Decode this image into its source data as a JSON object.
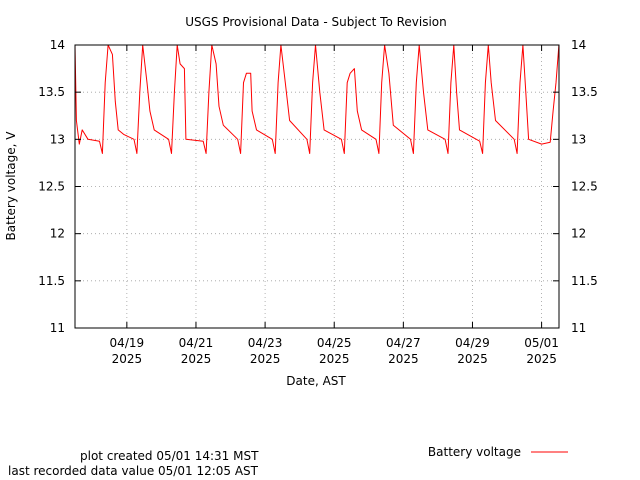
{
  "chart_data": {
    "type": "line",
    "title": "USGS Provisional Data - Subject To Revision",
    "xlabel": "Date, AST",
    "ylabel": "Battery voltage, V",
    "ylim": [
      11,
      14
    ],
    "xlim": [
      "2025-04-17T12:00",
      "2025-05-01T12:05"
    ],
    "y_ticks": [
      "11",
      "11.5",
      "12",
      "12.5",
      "13",
      "13.5",
      "14"
    ],
    "x_ticks": [
      {
        "date": "2025-04-19",
        "label": "04/19",
        "year": "2025"
      },
      {
        "date": "2025-04-21",
        "label": "04/21",
        "year": "2025"
      },
      {
        "date": "2025-04-23",
        "label": "04/23",
        "year": "2025"
      },
      {
        "date": "2025-04-25",
        "label": "04/25",
        "year": "2025"
      },
      {
        "date": "2025-04-27",
        "label": "04/27",
        "year": "2025"
      },
      {
        "date": "2025-04-29",
        "label": "04/29",
        "year": "2025"
      },
      {
        "date": "2025-05-01",
        "label": "05/01",
        "year": "2025"
      }
    ],
    "grid": true,
    "legend_position": "bottom-right",
    "series": [
      {
        "name": "Battery voltage",
        "color": "#ff0000",
        "points": [
          [
            "2025-04-17T12:00",
            14.0
          ],
          [
            "2025-04-17T13:00",
            13.2
          ],
          [
            "2025-04-17T15:00",
            12.95
          ],
          [
            "2025-04-17T17:00",
            13.1
          ],
          [
            "2025-04-17T21:00",
            13.0
          ],
          [
            "2025-04-18T05:00",
            12.98
          ],
          [
            "2025-04-18T07:00",
            12.85
          ],
          [
            "2025-04-18T09:00",
            13.6
          ],
          [
            "2025-04-18T11:00",
            14.0
          ],
          [
            "2025-04-18T14:00",
            13.9
          ],
          [
            "2025-04-18T16:00",
            13.4
          ],
          [
            "2025-04-18T18:00",
            13.1
          ],
          [
            "2025-04-18T22:00",
            13.05
          ],
          [
            "2025-04-19T05:00",
            13.0
          ],
          [
            "2025-04-19T07:00",
            12.85
          ],
          [
            "2025-04-19T09:00",
            13.5
          ],
          [
            "2025-04-19T11:00",
            14.0
          ],
          [
            "2025-04-19T14:00",
            13.6
          ],
          [
            "2025-04-19T16:00",
            13.3
          ],
          [
            "2025-04-19T19:00",
            13.1
          ],
          [
            "2025-04-20T05:00",
            13.0
          ],
          [
            "2025-04-20T07:00",
            12.85
          ],
          [
            "2025-04-20T09:00",
            13.5
          ],
          [
            "2025-04-20T11:00",
            14.0
          ],
          [
            "2025-04-20T13:00",
            13.8
          ],
          [
            "2025-04-20T16:00",
            13.75
          ],
          [
            "2025-04-20T17:00",
            13.0
          ],
          [
            "2025-04-21T05:00",
            12.98
          ],
          [
            "2025-04-21T07:00",
            12.85
          ],
          [
            "2025-04-21T09:00",
            13.5
          ],
          [
            "2025-04-21T11:00",
            14.0
          ],
          [
            "2025-04-21T14:00",
            13.8
          ],
          [
            "2025-04-21T16:00",
            13.35
          ],
          [
            "2025-04-21T19:00",
            13.15
          ],
          [
            "2025-04-22T05:00",
            13.0
          ],
          [
            "2025-04-22T07:00",
            12.85
          ],
          [
            "2025-04-22T09:00",
            13.6
          ],
          [
            "2025-04-22T11:00",
            13.7
          ],
          [
            "2025-04-22T14:00",
            13.7
          ],
          [
            "2025-04-22T15:00",
            13.3
          ],
          [
            "2025-04-22T18:00",
            13.1
          ],
          [
            "2025-04-23T05:00",
            13.0
          ],
          [
            "2025-04-23T07:00",
            12.85
          ],
          [
            "2025-04-23T09:00",
            13.6
          ],
          [
            "2025-04-23T11:00",
            14.0
          ],
          [
            "2025-04-23T14:00",
            13.6
          ],
          [
            "2025-04-23T17:00",
            13.2
          ],
          [
            "2025-04-24T05:00",
            13.0
          ],
          [
            "2025-04-24T07:00",
            12.85
          ],
          [
            "2025-04-24T09:00",
            13.6
          ],
          [
            "2025-04-24T11:00",
            14.0
          ],
          [
            "2025-04-24T14:00",
            13.5
          ],
          [
            "2025-04-24T17:00",
            13.1
          ],
          [
            "2025-04-25T05:00",
            13.0
          ],
          [
            "2025-04-25T07:00",
            12.85
          ],
          [
            "2025-04-25T09:00",
            13.6
          ],
          [
            "2025-04-25T11:00",
            13.7
          ],
          [
            "2025-04-25T14:00",
            13.75
          ],
          [
            "2025-04-25T16:00",
            13.3
          ],
          [
            "2025-04-25T19:00",
            13.1
          ],
          [
            "2025-04-26T05:00",
            13.0
          ],
          [
            "2025-04-26T07:00",
            12.85
          ],
          [
            "2025-04-26T09:00",
            13.6
          ],
          [
            "2025-04-26T11:00",
            14.0
          ],
          [
            "2025-04-26T14:00",
            13.7
          ],
          [
            "2025-04-26T17:00",
            13.15
          ],
          [
            "2025-04-27T05:00",
            13.0
          ],
          [
            "2025-04-27T07:00",
            12.85
          ],
          [
            "2025-04-27T09:00",
            13.6
          ],
          [
            "2025-04-27T11:00",
            14.0
          ],
          [
            "2025-04-27T14:00",
            13.5
          ],
          [
            "2025-04-27T17:00",
            13.1
          ],
          [
            "2025-04-28T05:00",
            13.0
          ],
          [
            "2025-04-28T07:00",
            12.85
          ],
          [
            "2025-04-28T09:00",
            13.6
          ],
          [
            "2025-04-28T11:00",
            14.0
          ],
          [
            "2025-04-28T13:00",
            13.5
          ],
          [
            "2025-04-28T15:00",
            13.1
          ],
          [
            "2025-04-29T05:00",
            12.98
          ],
          [
            "2025-04-29T07:00",
            12.85
          ],
          [
            "2025-04-29T09:00",
            13.6
          ],
          [
            "2025-04-29T11:00",
            14.0
          ],
          [
            "2025-04-29T13:00",
            13.6
          ],
          [
            "2025-04-29T16:00",
            13.2
          ],
          [
            "2025-04-30T05:00",
            13.0
          ],
          [
            "2025-04-30T07:00",
            12.85
          ],
          [
            "2025-04-30T09:00",
            13.6
          ],
          [
            "2025-04-30T11:00",
            14.0
          ],
          [
            "2025-04-30T13:00",
            13.5
          ],
          [
            "2025-04-30T15:00",
            13.0
          ],
          [
            "2025-05-01T00:00",
            12.95
          ],
          [
            "2025-05-01T06:00",
            12.97
          ],
          [
            "2025-05-01T08:00",
            13.3
          ],
          [
            "2025-05-01T10:00",
            13.6
          ],
          [
            "2025-05-01T12:00",
            14.0
          ]
        ]
      }
    ]
  },
  "footer": {
    "plot_created": "plot created 05/01 14:31 MST",
    "last_value": "last recorded data value 05/01 12:05 AST"
  }
}
